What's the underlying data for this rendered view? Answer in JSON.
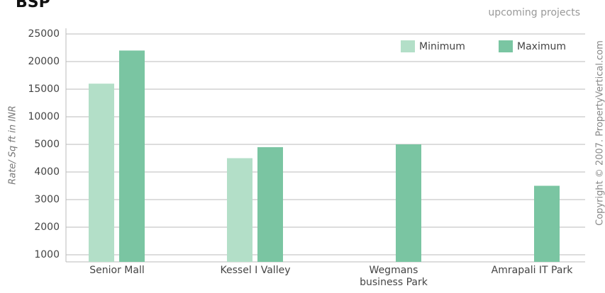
{
  "chart_data": {
    "type": "bar",
    "title": "BSP",
    "subtitle": "upcoming projects",
    "y_label": "Rate/ Sq ft in INR",
    "credit": "Copyright © 2007. PropertyVertical.com",
    "categories": [
      "Senior Mall",
      "Kessel I Valley",
      "Wegmans\nbusiness Park",
      "Amrapali IT Park"
    ],
    "series": [
      {
        "name": "Minimum",
        "color": "#b3dfc8",
        "values": [
          16000,
          4500,
          null,
          null
        ]
      },
      {
        "name": "Maximum",
        "color": "#7ac5a2",
        "values": [
          22000,
          4900,
          5000,
          3500
        ]
      }
    ],
    "ylim": [
      1000,
      25000
    ],
    "yticks": [
      1000,
      2000,
      3000,
      4000,
      5000,
      10000,
      15000,
      20000,
      25000
    ],
    "grid": true,
    "legend": "top-right"
  }
}
